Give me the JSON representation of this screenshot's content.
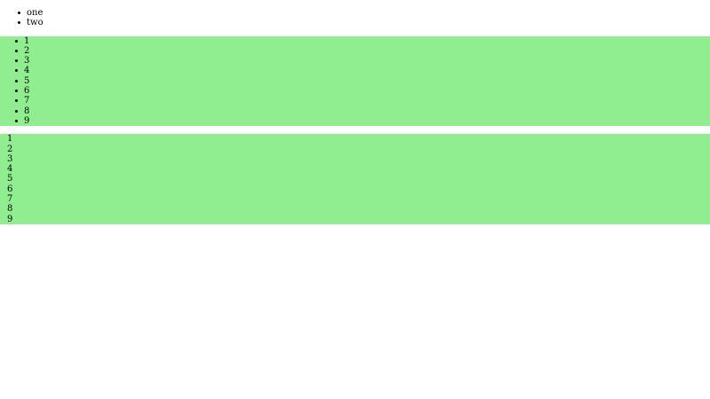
{
  "page": {
    "background": "#ffffff",
    "text_color": "#000000"
  },
  "colors": {
    "list_background": "#90EE90",
    "bullet": "#000000"
  },
  "lists": {
    "plain": {
      "items": [
        "one",
        "two"
      ]
    },
    "green_padded": {
      "background": "#90EE90",
      "items": [
        "1",
        "2",
        "3",
        "4",
        "5",
        "6",
        "7",
        "8",
        "9"
      ]
    },
    "green_flush": {
      "background": "#90EE90",
      "items": [
        "1",
        "2",
        "3",
        "4",
        "5",
        "6",
        "7",
        "8",
        "9"
      ]
    }
  }
}
